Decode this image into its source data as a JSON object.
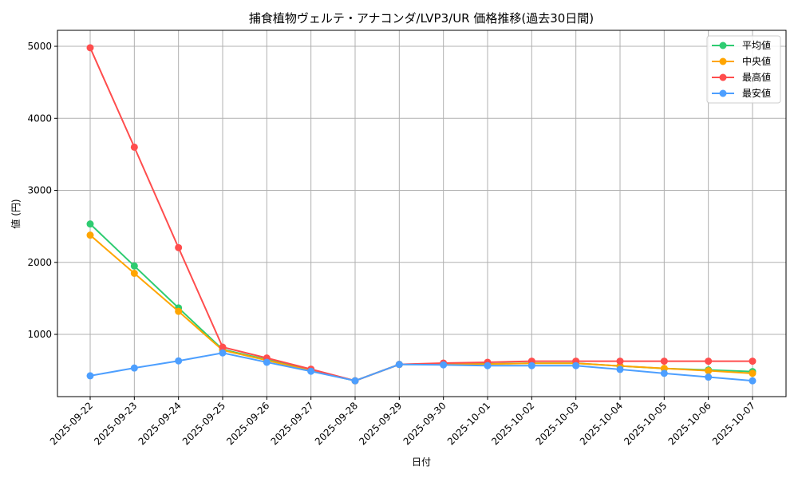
{
  "chart_data": {
    "type": "line",
    "title": "捕食植物ヴェルテ・アナコンダ/LVP3/UR 価格推移(過去30日間)",
    "xlabel": "日付",
    "ylabel": "値 (円)",
    "ylim": [
      136,
      5222
    ],
    "yticks": [
      1000,
      2000,
      3000,
      4000,
      5000
    ],
    "grid": true,
    "legend_position": "top-right",
    "categories": [
      "2025-09-22",
      "2025-09-23",
      "2025-09-24",
      "2025-09-25",
      "2025-09-26",
      "2025-09-27",
      "2025-09-28",
      "2025-09-29",
      "2025-09-30",
      "2025-10-01",
      "2025-10-02",
      "2025-10-03",
      "2025-10-04",
      "2025-10-05",
      "2025-10-06",
      "2025-10-07"
    ],
    "series": [
      {
        "name": "平均値",
        "color": "#2ecc71",
        "values": [
          2533,
          1950,
          1368,
          790,
          650,
          500,
          356,
          583,
          590,
          590,
          600,
          600,
          561,
          526,
          506,
          484
        ]
      },
      {
        "name": "中央値",
        "color": "#ffa500",
        "values": [
          2378,
          1848,
          1320,
          780,
          640,
          495,
          356,
          583,
          588,
          588,
          598,
          598,
          561,
          528,
          495,
          459
        ]
      },
      {
        "name": "最高値",
        "color": "#ff4d4d",
        "values": [
          4980,
          3600,
          2204,
          823,
          672,
          517,
          356,
          583,
          602,
          613,
          628,
          628,
          628,
          628,
          628,
          628
        ]
      },
      {
        "name": "最安値",
        "color": "#4d9fff",
        "values": [
          425,
          533,
          632,
          743,
          613,
          488,
          356,
          583,
          577,
          566,
          566,
          566,
          514,
          459,
          407,
          356
        ]
      }
    ]
  }
}
